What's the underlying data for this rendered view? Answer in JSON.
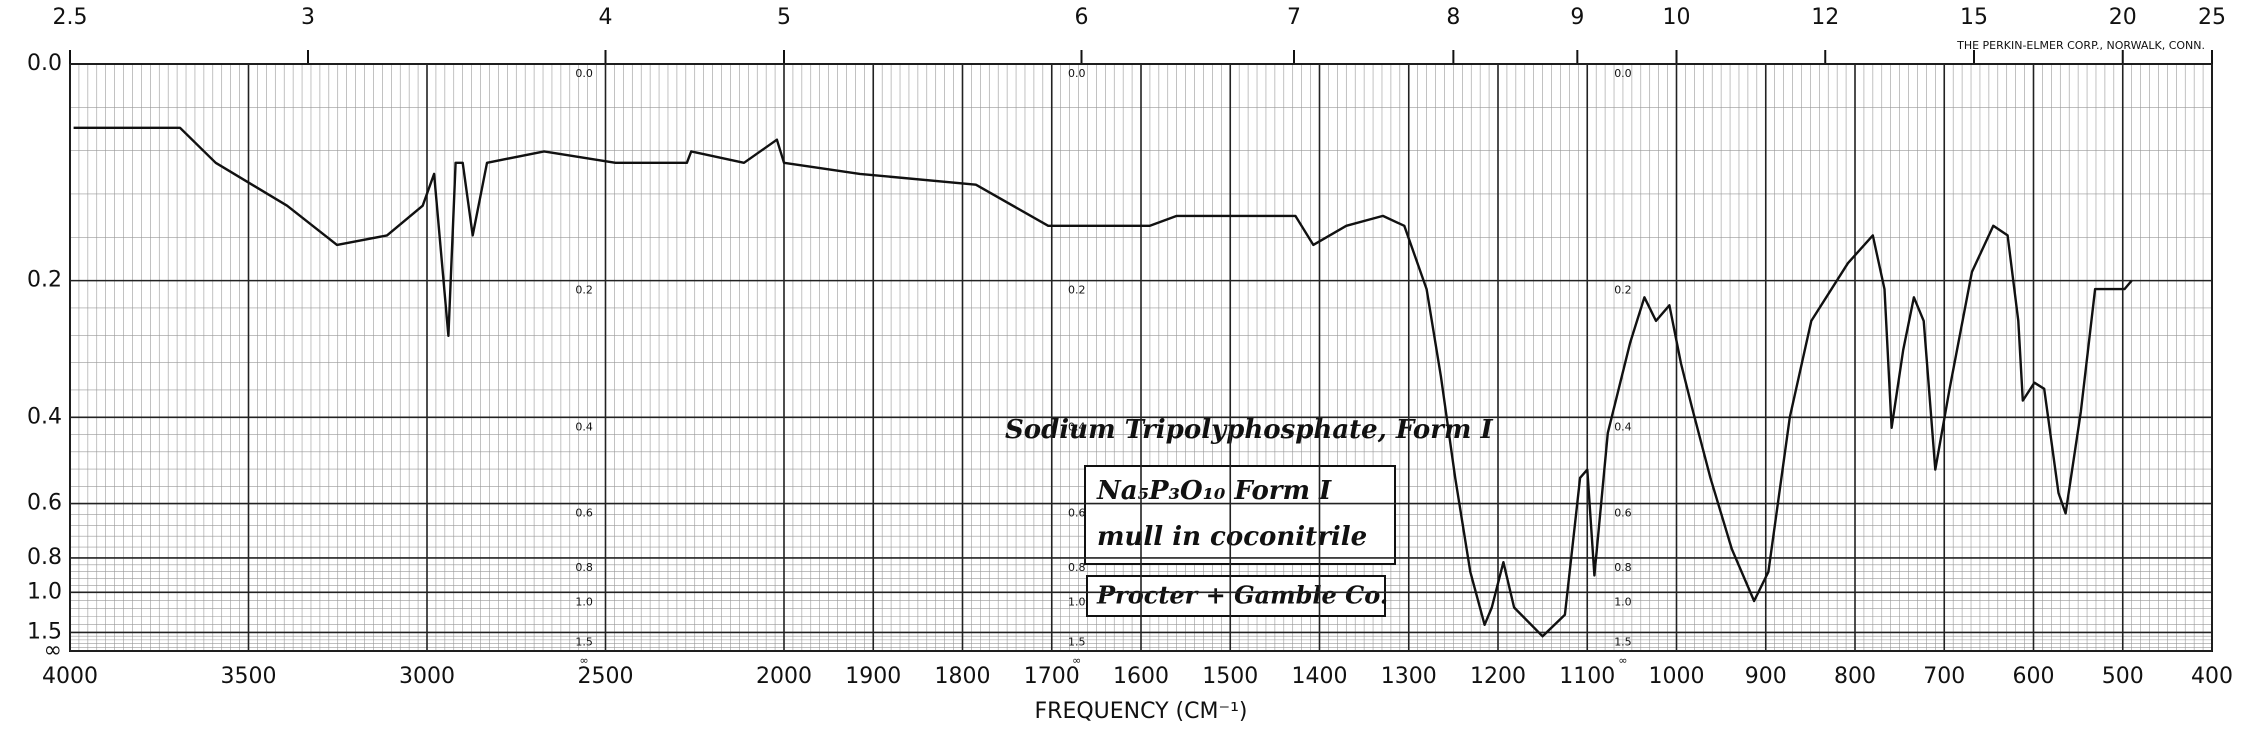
{
  "chart_data": {
    "type": "line",
    "xlabel": "FREQUENCY (CM⁻¹)",
    "brand": "THE PERKIN-ELMER CORP., NORWALK, CONN.",
    "annotations": [
      "Sodium Tripolyphosphate, Form I",
      "Na₅P₃O₁₀   Form I",
      "mull in coconitrile",
      "Procter + Gamble Co."
    ],
    "color": "#111111",
    "grid": true,
    "yscale": "absorbance",
    "xlim": [
      4000,
      400
    ],
    "xticks": [
      4000,
      3500,
      3000,
      2500,
      2000,
      1900,
      1800,
      1700,
      1600,
      1500,
      1400,
      1300,
      1200,
      1100,
      1000,
      900,
      800,
      700,
      600,
      500,
      400
    ],
    "x2ticks": [
      2.5,
      3,
      4,
      5,
      6,
      7,
      8,
      9,
      10,
      12,
      15,
      20,
      25
    ],
    "ylim": [
      0,
      null
    ],
    "yticks": [
      {
        "value": 0,
        "label": "0.0"
      },
      0.2,
      0.4,
      0.6,
      0.8,
      {
        "value": 1,
        "label": "1.0"
      },
      1.5,
      {
        "value": null,
        "label": "∞"
      }
    ],
    "x": [
      3990,
      3692,
      3592,
      3392,
      3252,
      3112,
      3012,
      2980,
      2940,
      2920,
      2900,
      2872,
      2832,
      2672,
      2472,
      2272,
      2260,
      2112,
      2020,
      2000,
      1915,
      1785,
      1704,
      1655,
      1590,
      1560,
      1476,
      1427,
      1407,
      1370,
      1329,
      1305,
      1280,
      1264,
      1248,
      1231,
      1215,
      1207,
      1194,
      1182,
      1150,
      1125,
      1108,
      1100,
      1092,
      1077,
      1052,
      1036,
      1023,
      1008,
      995,
      983,
      962,
      938,
      913,
      897,
      873,
      849,
      808,
      780,
      767,
      759,
      746,
      734,
      723,
      710,
      694,
      669,
      645,
      629,
      617,
      612,
      599,
      588,
      572,
      564,
      547,
      531,
      498,
      490
    ],
    "values": [
      0.05,
      0.05,
      0.08,
      0.12,
      0.16,
      0.15,
      0.12,
      0.09,
      0.27,
      0.08,
      0.08,
      0.15,
      0.08,
      0.07,
      0.08,
      0.08,
      0.07,
      0.08,
      0.06,
      0.08,
      0.09,
      0.1,
      0.14,
      0.14,
      0.14,
      0.13,
      0.13,
      0.13,
      0.16,
      0.14,
      0.13,
      0.14,
      0.21,
      0.33,
      0.53,
      0.87,
      1.35,
      1.13,
      0.82,
      1.13,
      1.6,
      1.21,
      0.53,
      0.51,
      0.89,
      0.43,
      0.28,
      0.22,
      0.25,
      0.23,
      0.31,
      0.38,
      0.53,
      0.76,
      1.07,
      0.87,
      0.4,
      0.25,
      0.18,
      0.15,
      0.21,
      0.42,
      0.29,
      0.22,
      0.25,
      0.51,
      0.35,
      0.19,
      0.14,
      0.15,
      0.25,
      0.37,
      0.34,
      0.35,
      0.57,
      0.63,
      0.39,
      0.21,
      0.21,
      0.2
    ]
  }
}
